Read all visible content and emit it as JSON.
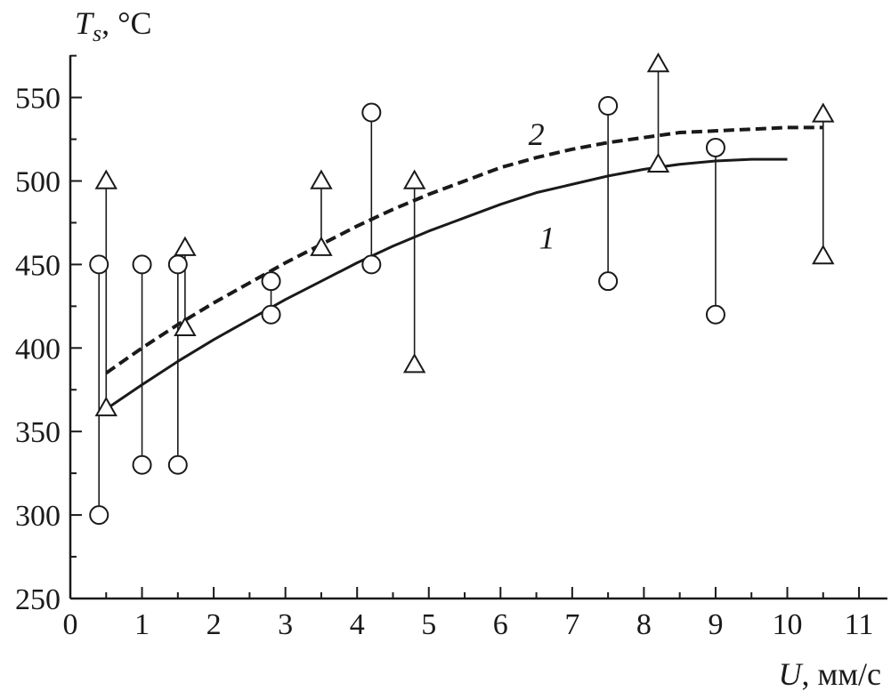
{
  "chart_data": {
    "type": "scatter",
    "ylabel": {
      "symbol": "T",
      "subscript": "s",
      "unit": ", °C"
    },
    "xlabel": {
      "symbol": "U",
      "unit": ", мм/с"
    },
    "xlim": [
      0,
      11
    ],
    "ylim": [
      250,
      575
    ],
    "x_ticks": [
      "0",
      "1",
      "2",
      "3",
      "4",
      "5",
      "6",
      "7",
      "8",
      "9",
      "10",
      "11"
    ],
    "y_ticks": [
      "250",
      "300",
      "350",
      "400",
      "450",
      "500",
      "550"
    ],
    "grid": false,
    "range_bars": [
      {
        "x": 0.4,
        "y1": 300,
        "y2": 450,
        "marker": "circle"
      },
      {
        "x": 0.5,
        "y1": 364,
        "y2": 500,
        "marker": "triangle"
      },
      {
        "x": 1.0,
        "y1": 330,
        "y2": 450,
        "marker": "circle"
      },
      {
        "x": 1.5,
        "y1": 330,
        "y2": 450,
        "marker": "circle"
      },
      {
        "x": 1.6,
        "y1": 412,
        "y2": 460,
        "marker": "triangle"
      },
      {
        "x": 2.8,
        "y1": 420,
        "y2": 440,
        "marker": "circle"
      },
      {
        "x": 3.5,
        "y1": 460,
        "y2": 500,
        "marker": "triangle"
      },
      {
        "x": 4.2,
        "y1": 450,
        "y2": 541,
        "marker": "circle"
      },
      {
        "x": 4.8,
        "y1": 390,
        "y2": 500,
        "marker": "triangle"
      },
      {
        "x": 7.5,
        "y1": 440,
        "y2": 545,
        "marker": "circle"
      },
      {
        "x": 8.2,
        "y1": 510,
        "y2": 570,
        "marker": "triangle"
      },
      {
        "x": 9.0,
        "y1": 420,
        "y2": 520,
        "marker": "circle"
      },
      {
        "x": 10.5,
        "y1": 455,
        "y2": 540,
        "marker": "triangle"
      }
    ],
    "curves": [
      {
        "label": "1",
        "style": "solid",
        "label_at": {
          "x": 6.65,
          "y": 466
        },
        "points": [
          [
            0.45,
            362
          ],
          [
            1,
            378
          ],
          [
            1.5,
            392
          ],
          [
            2,
            405
          ],
          [
            2.5,
            417
          ],
          [
            3,
            429
          ],
          [
            3.5,
            440
          ],
          [
            4,
            451
          ],
          [
            4.5,
            461
          ],
          [
            5,
            470
          ],
          [
            5.5,
            478
          ],
          [
            6,
            486
          ],
          [
            6.5,
            493
          ],
          [
            7,
            498
          ],
          [
            7.5,
            503
          ],
          [
            8,
            507
          ],
          [
            8.5,
            510
          ],
          [
            9,
            512
          ],
          [
            9.5,
            513
          ],
          [
            10,
            513
          ]
        ]
      },
      {
        "label": "2",
        "style": "dashed",
        "label_at": {
          "x": 6.5,
          "y": 528
        },
        "points": [
          [
            0.5,
            385
          ],
          [
            1,
            400
          ],
          [
            1.5,
            414
          ],
          [
            2,
            427
          ],
          [
            2.5,
            439
          ],
          [
            3,
            451
          ],
          [
            3.5,
            462
          ],
          [
            4,
            473
          ],
          [
            4.5,
            483
          ],
          [
            5,
            492
          ],
          [
            5.5,
            500
          ],
          [
            6,
            508
          ],
          [
            6.5,
            514
          ],
          [
            7,
            519
          ],
          [
            7.5,
            523
          ],
          [
            8,
            526
          ],
          [
            8.5,
            529
          ],
          [
            9,
            530
          ],
          [
            9.5,
            531
          ],
          [
            10,
            532
          ],
          [
            10.5,
            532
          ]
        ]
      }
    ]
  }
}
